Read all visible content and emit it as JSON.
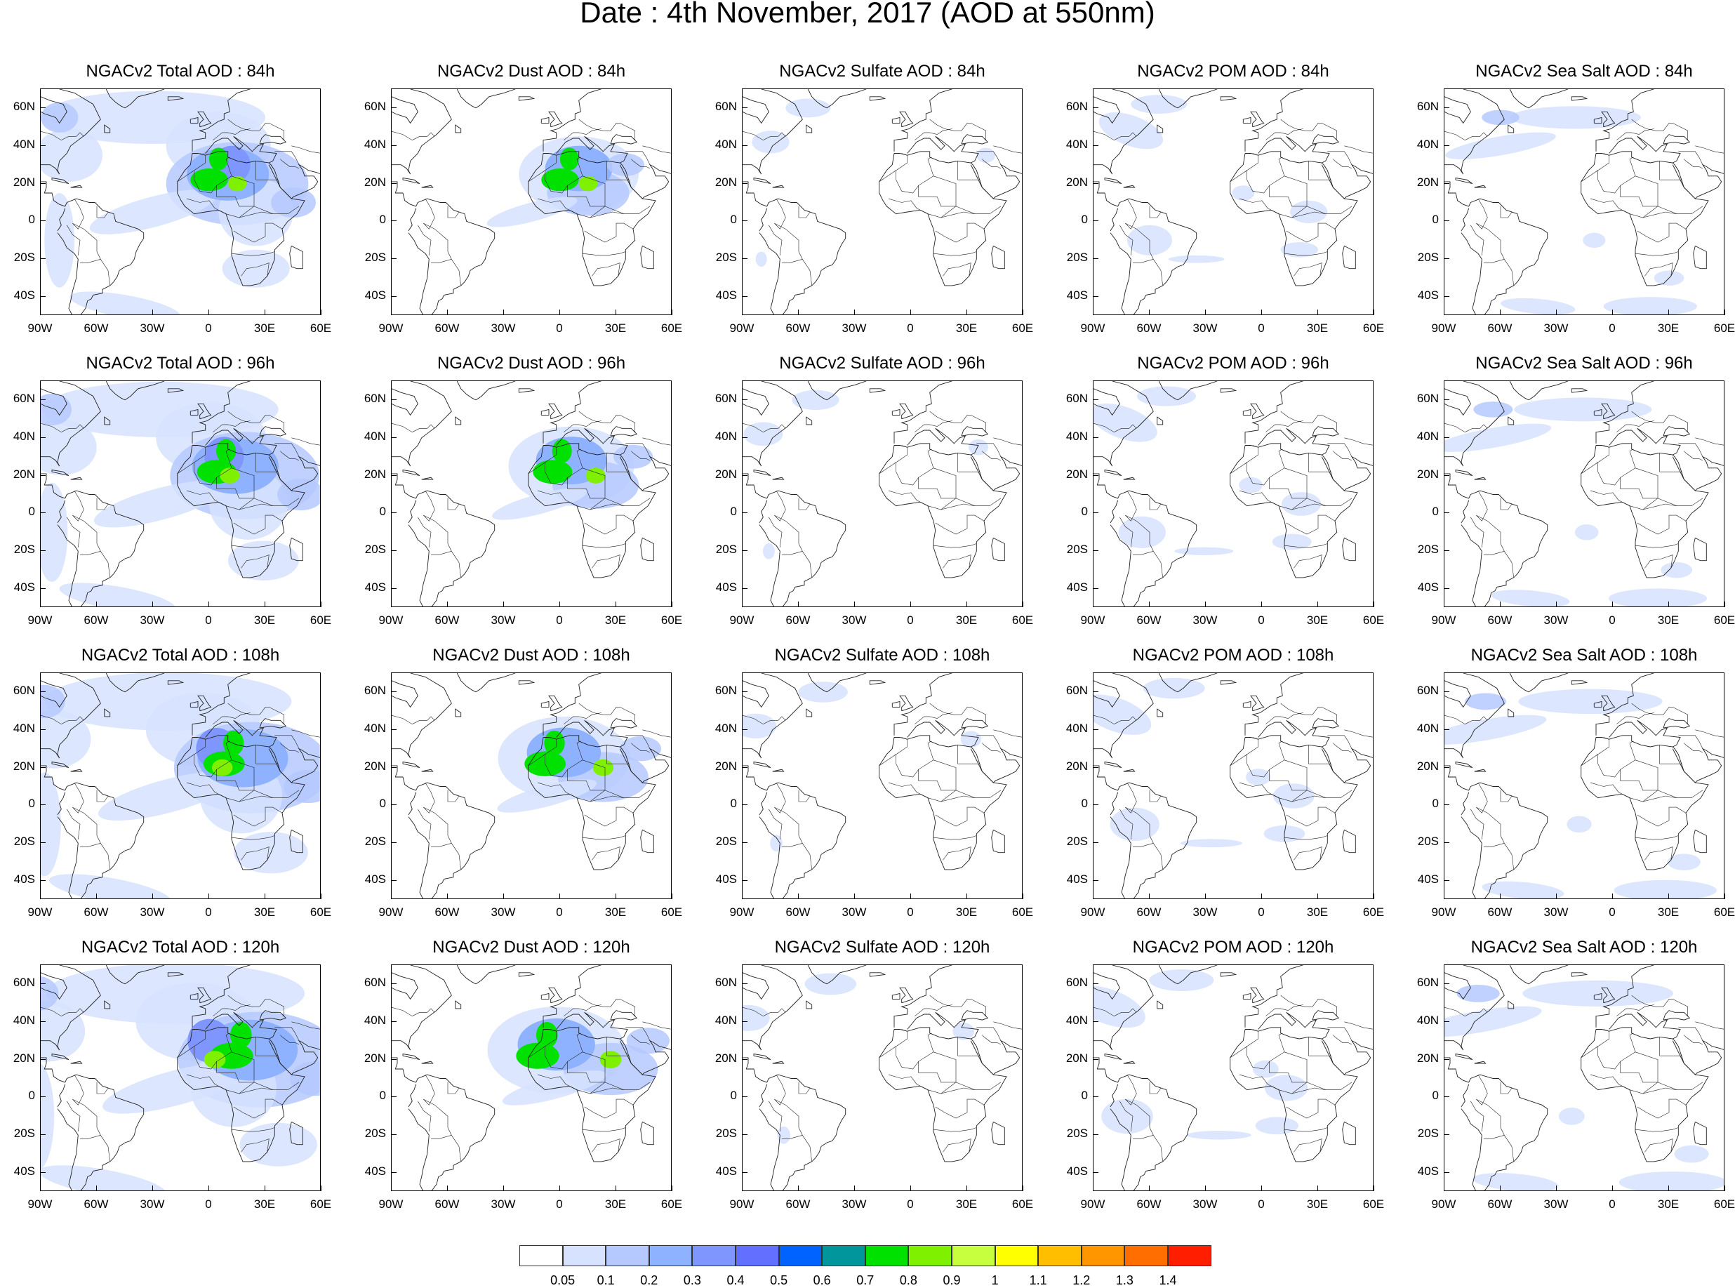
{
  "title": "Date : 4th November, 2017 (AOD at 550nm)",
  "rows": [
    {
      "hour": "84h",
      "titles": [
        "NGACv2 Total AOD : 84h",
        "NGACv2 Dust AOD : 84h",
        "NGACv2 Sulfate AOD : 84h",
        "NGACv2 POM AOD : 84h",
        "NGACv2 Sea Salt AOD : 84h"
      ]
    },
    {
      "hour": "96h",
      "titles": [
        "NGACv2 Total AOD : 96h",
        "NGACv2 Dust AOD : 96h",
        "NGACv2 Sulfate AOD : 96h",
        "NGACv2 POM AOD : 96h",
        "NGACv2 Sea Salt AOD : 96h"
      ]
    },
    {
      "hour": "108h",
      "titles": [
        "NGACv2 Total AOD : 108h",
        "NGACv2 Dust AOD : 108h",
        "NGACv2 Sulfate AOD : 108h",
        "NGACv2 POM AOD : 108h",
        "NGACv2 Sea Salt AOD : 108h"
      ]
    },
    {
      "hour": "120h",
      "titles": [
        "NGACv2 Total AOD : 120h",
        "NGACv2 Dust AOD : 120h",
        "NGACv2 Sulfate AOD : 120h",
        "NGACv2 POM AOD : 120h",
        "NGACv2 Sea Salt  AOD : 120h"
      ]
    }
  ],
  "species": [
    "Total",
    "Dust",
    "Sulfate",
    "POM",
    "Sea Salt"
  ],
  "lat_labels": [
    "60N",
    "40N",
    "20N",
    "0",
    "20S",
    "40S"
  ],
  "lat_values": [
    60,
    40,
    20,
    0,
    -20,
    -40
  ],
  "lon_labels": [
    "90W",
    "60W",
    "30W",
    "0",
    "30E",
    "60E"
  ],
  "lon_values": [
    -90,
    -60,
    -30,
    0,
    30,
    60
  ],
  "map_extent": {
    "lon_min": -90,
    "lon_max": 60,
    "lat_min": -50,
    "lat_max": 70
  },
  "colorbar": {
    "colors": [
      "#ffffff",
      "#d6e2ff",
      "#b5c9ff",
      "#8eb2ff",
      "#7f96ff",
      "#6370ff",
      "#0063ff",
      "#00969b",
      "#00e100",
      "#7ff000",
      "#c7ff3f",
      "#ffff00",
      "#ffbe00",
      "#ff9600",
      "#ff6e00",
      "#ff1e00"
    ],
    "labels": [
      "0.05",
      "0.1",
      "0.2",
      "0.3",
      "0.4",
      "0.5",
      "0.6",
      "0.7",
      "0.8",
      "0.9",
      "1",
      "1.1",
      "1.2",
      "1.3",
      "1.4"
    ]
  }
}
